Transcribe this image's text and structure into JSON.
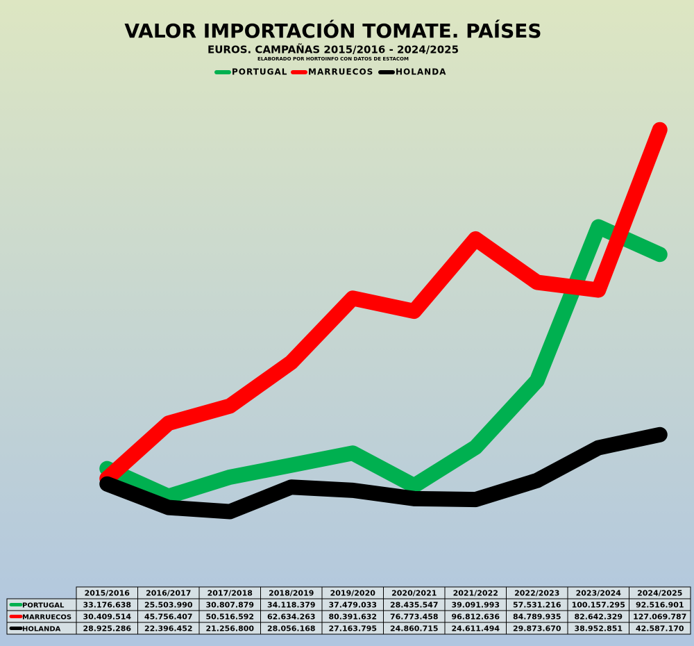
{
  "chart_data": {
    "type": "line",
    "title": "VALOR IMPORTACIÓN TOMATE. PAÍSES",
    "subtitle": "EUROS. CAMPAÑAS 2015/2016 - 2024/2025",
    "note": "ELABORADO POR HORTOINFO CON DATOS DE ESTACOM",
    "categories": [
      "2015/2016",
      "2016/2017",
      "2017/2018",
      "2018/2019",
      "2019/2020",
      "2020/2021",
      "2021/2022",
      "2022/2023",
      "2023/2024",
      "2024/2025"
    ],
    "series": [
      {
        "name": "PORTUGAL",
        "color": "#00b050",
        "values": [
          33176638,
          25503990,
          30807879,
          34118379,
          37479033,
          28435547,
          39091993,
          57531216,
          100157295,
          92516901
        ],
        "value_labels": [
          "33.176.638",
          "25.503.990",
          "30.807.879",
          "34.118.379",
          "37.479.033",
          "28.435.547",
          "39.091.993",
          "57.531.216",
          "100.157.295",
          "92.516.901"
        ]
      },
      {
        "name": "MARRUECOS",
        "color": "#ff0000",
        "values": [
          30409514,
          45756407,
          50516592,
          62634263,
          80391632,
          76773458,
          96812636,
          84789935,
          82642329,
          127069787
        ],
        "value_labels": [
          "30.409.514",
          "45.756.407",
          "50.516.592",
          "62.634.263",
          "80.391.632",
          "76.773.458",
          "96.812.636",
          "84.789.935",
          "82.642.329",
          "127.069.787"
        ]
      },
      {
        "name": "HOLANDA",
        "color": "#000000",
        "values": [
          28925286,
          22396452,
          21256800,
          28056168,
          27163795,
          24860715,
          24611494,
          29873670,
          38952851,
          42587170
        ],
        "value_labels": [
          "28.925.286",
          "22.396.452",
          "21.256.800",
          "28.056.168",
          "27.163.795",
          "24.860.715",
          "24.611.494",
          "29.873.670",
          "38.952.851",
          "42.587.170"
        ]
      }
    ],
    "ylim": [
      0,
      163000000
    ],
    "legend": "top"
  }
}
